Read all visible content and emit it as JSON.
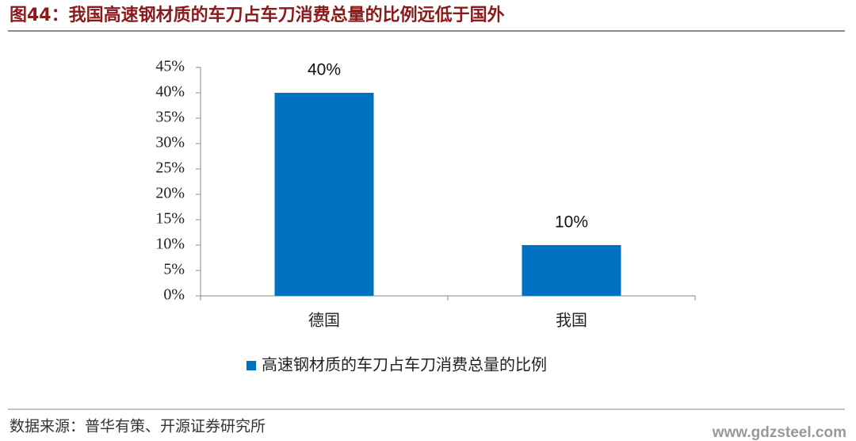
{
  "chart_data": {
    "type": "bar",
    "title": "图44：我国高速钢材质的车刀占车刀消费总量的比例远低于国外",
    "categories": [
      "德国",
      "我国"
    ],
    "series": [
      {
        "name": "高速钢材质的车刀占车刀消费总量的比例",
        "color": "#0070c0",
        "values": [
          40,
          10
        ],
        "value_labels": [
          "40%",
          "10%"
        ]
      }
    ],
    "ylim": [
      0,
      45
    ],
    "yticks": [
      {
        "value": 0,
        "label": "0%"
      },
      {
        "value": 5,
        "label": "5%"
      },
      {
        "value": 10,
        "label": "10%"
      },
      {
        "value": 15,
        "label": "15%"
      },
      {
        "value": 20,
        "label": "20%"
      },
      {
        "value": 25,
        "label": "25%"
      },
      {
        "value": 30,
        "label": "30%"
      },
      {
        "value": 35,
        "label": "35%"
      },
      {
        "value": 40,
        "label": "40%"
      },
      {
        "value": 45,
        "label": "45%"
      }
    ],
    "grid": false,
    "legend": "bottom",
    "source": "数据来源：普华有策、开源证券研究所",
    "watermark": "www.gdzsteel.com"
  }
}
